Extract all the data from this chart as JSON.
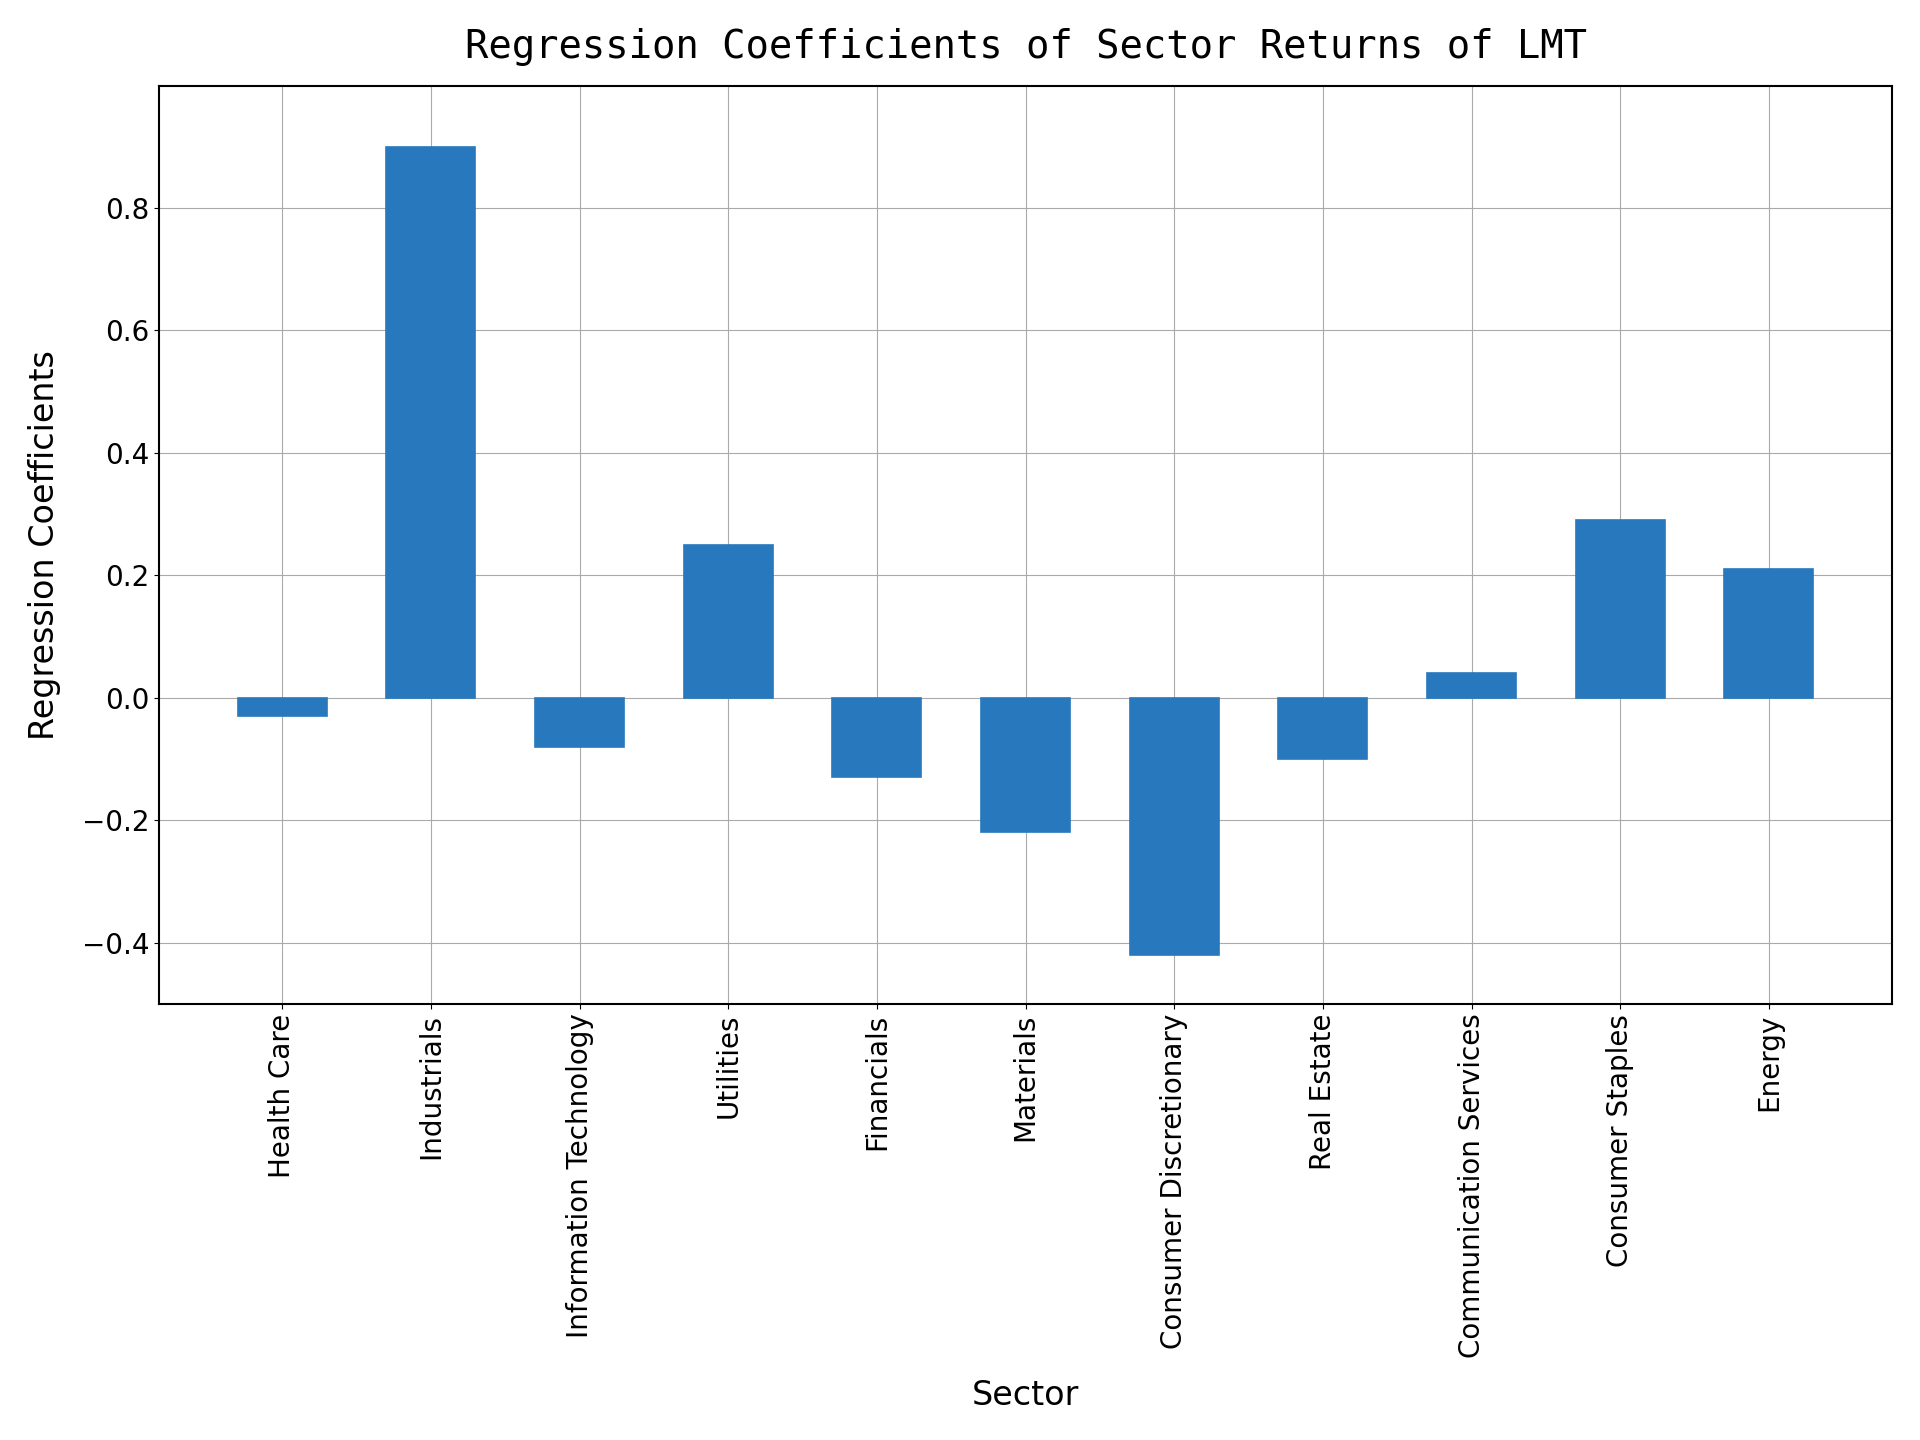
{
  "title": "Regression Coefficients of Sector Returns of LMT",
  "xlabel": "Sector",
  "ylabel": "Regression Coefficients",
  "categories": [
    "Health Care",
    "Industrials",
    "Information Technology",
    "Utilities",
    "Financials",
    "Materials",
    "Consumer Discretionary",
    "Real Estate",
    "Communication Services",
    "Consumer Staples",
    "Energy"
  ],
  "values": [
    -0.03,
    0.9,
    -0.08,
    0.25,
    -0.13,
    -0.22,
    -0.42,
    -0.1,
    0.04,
    0.29,
    0.21
  ],
  "bar_color": "#2878bd",
  "bar_edge_color": "#2878bd",
  "ylim": [
    -0.5,
    1.0
  ],
  "yticks": [
    -0.4,
    -0.2,
    0.0,
    0.2,
    0.4,
    0.6,
    0.8
  ],
  "grid_color": "#aaaaaa",
  "background_color": "#ffffff",
  "title_fontsize": 28,
  "axis_label_fontsize": 24,
  "tick_fontsize": 20,
  "xtick_rotation": 90
}
